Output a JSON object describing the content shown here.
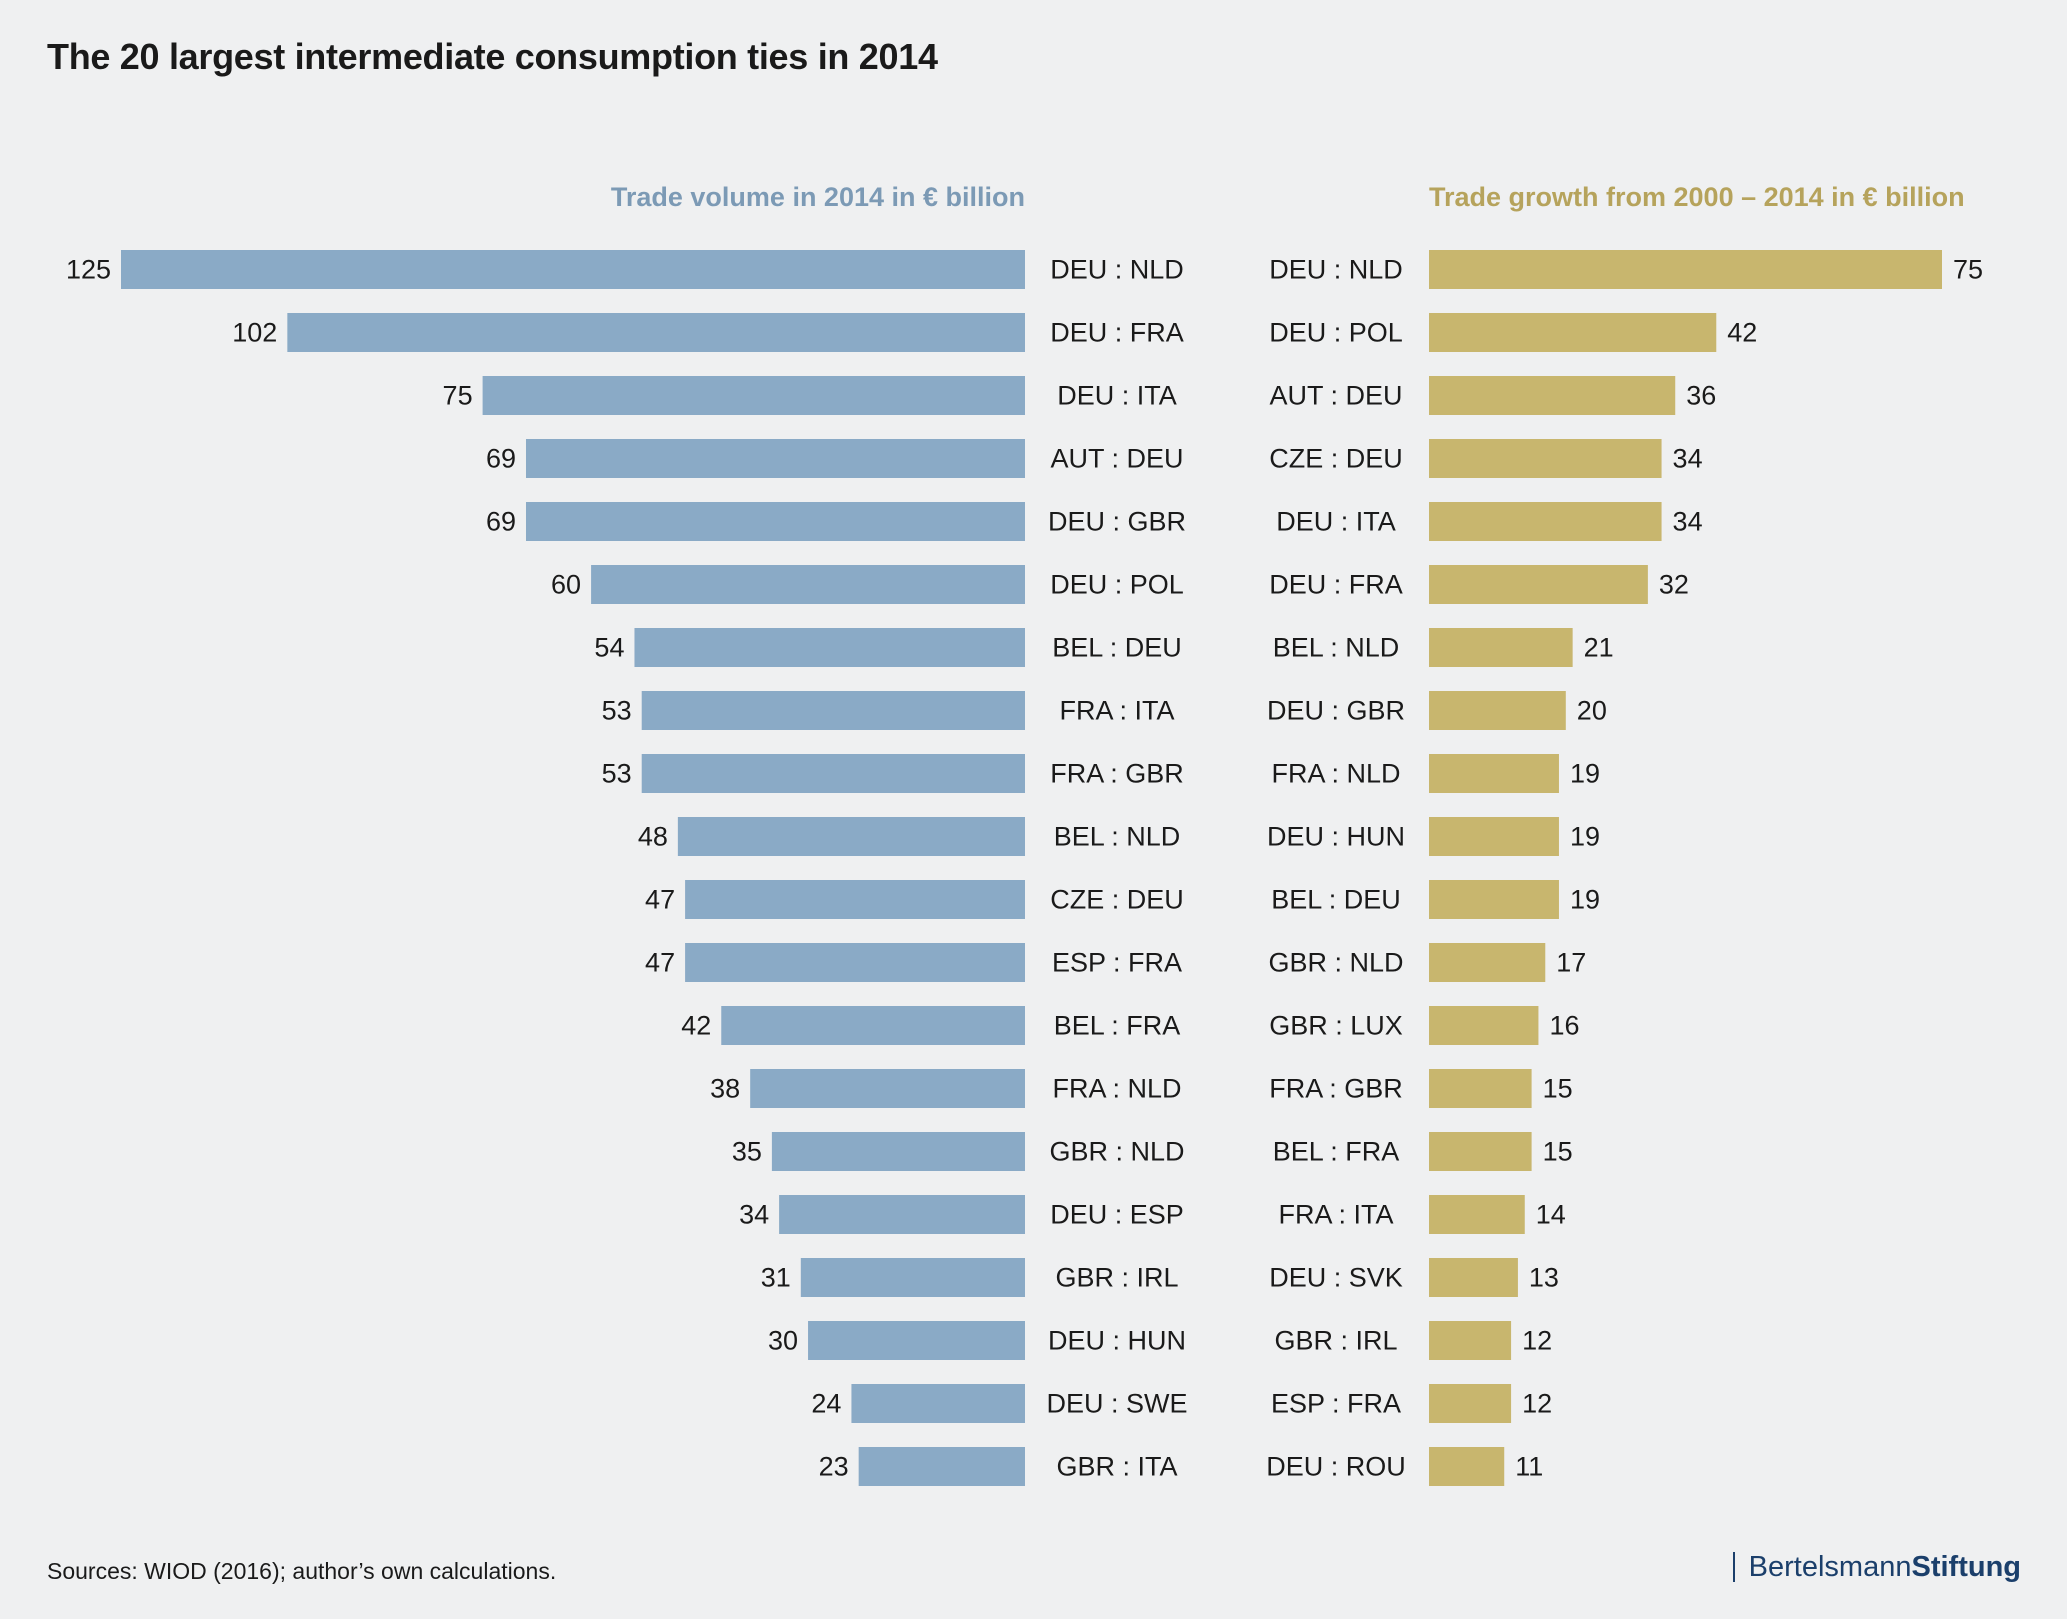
{
  "title": "The 20 largest intermediate consumption ties in 2014",
  "source": "Sources: WIOD (2016); author’s own calculations.",
  "logo": {
    "part1": "Bertelsmann",
    "part2": "Stiftung"
  },
  "colors": {
    "left_bar": "#8aaac6",
    "right_bar": "#c8b66e",
    "left_header": "#7c9ab5",
    "right_header": "#b6a35c",
    "logo": "#1b3f6b"
  },
  "chart_data": [
    {
      "type": "bar",
      "orientation": "horizontal",
      "direction": "right-to-left",
      "title": "Trade volume in 2014 in € billion",
      "categories": [
        "DEU : NLD",
        "DEU : FRA",
        "DEU : ITA",
        "AUT : DEU",
        "DEU : GBR",
        "DEU : POL",
        "BEL : DEU",
        "FRA : ITA",
        "FRA : GBR",
        "BEL : NLD",
        "CZE : DEU",
        "ESP : FRA",
        "BEL : FRA",
        "FRA : NLD",
        "GBR : NLD",
        "DEU : ESP",
        "GBR : IRL",
        "DEU : HUN",
        "DEU : SWE",
        "GBR : ITA"
      ],
      "values": [
        125,
        102,
        75,
        69,
        69,
        60,
        54,
        53,
        53,
        48,
        47,
        47,
        42,
        38,
        35,
        34,
        31,
        30,
        24,
        23
      ],
      "xlim": [
        0,
        125
      ],
      "grid": false
    },
    {
      "type": "bar",
      "orientation": "horizontal",
      "direction": "left-to-right",
      "title": "Trade growth from 2000 – 2014 in € billion",
      "categories": [
        "DEU : NLD",
        "DEU : POL",
        "AUT : DEU",
        "CZE : DEU",
        "DEU : ITA",
        "DEU : FRA",
        "BEL : NLD",
        "DEU : GBR",
        "FRA : NLD",
        "DEU : HUN",
        "BEL : DEU",
        "GBR : NLD",
        "GBR : LUX",
        "FRA : GBR",
        "BEL : FRA",
        "FRA : ITA",
        "DEU : SVK",
        "GBR : IRL",
        "ESP : FRA",
        "DEU : ROU"
      ],
      "values": [
        75,
        42,
        36,
        34,
        34,
        32,
        21,
        20,
        19,
        19,
        19,
        17,
        16,
        15,
        15,
        14,
        13,
        12,
        12,
        11
      ],
      "xlim": [
        0,
        75
      ],
      "grid": false
    }
  ]
}
